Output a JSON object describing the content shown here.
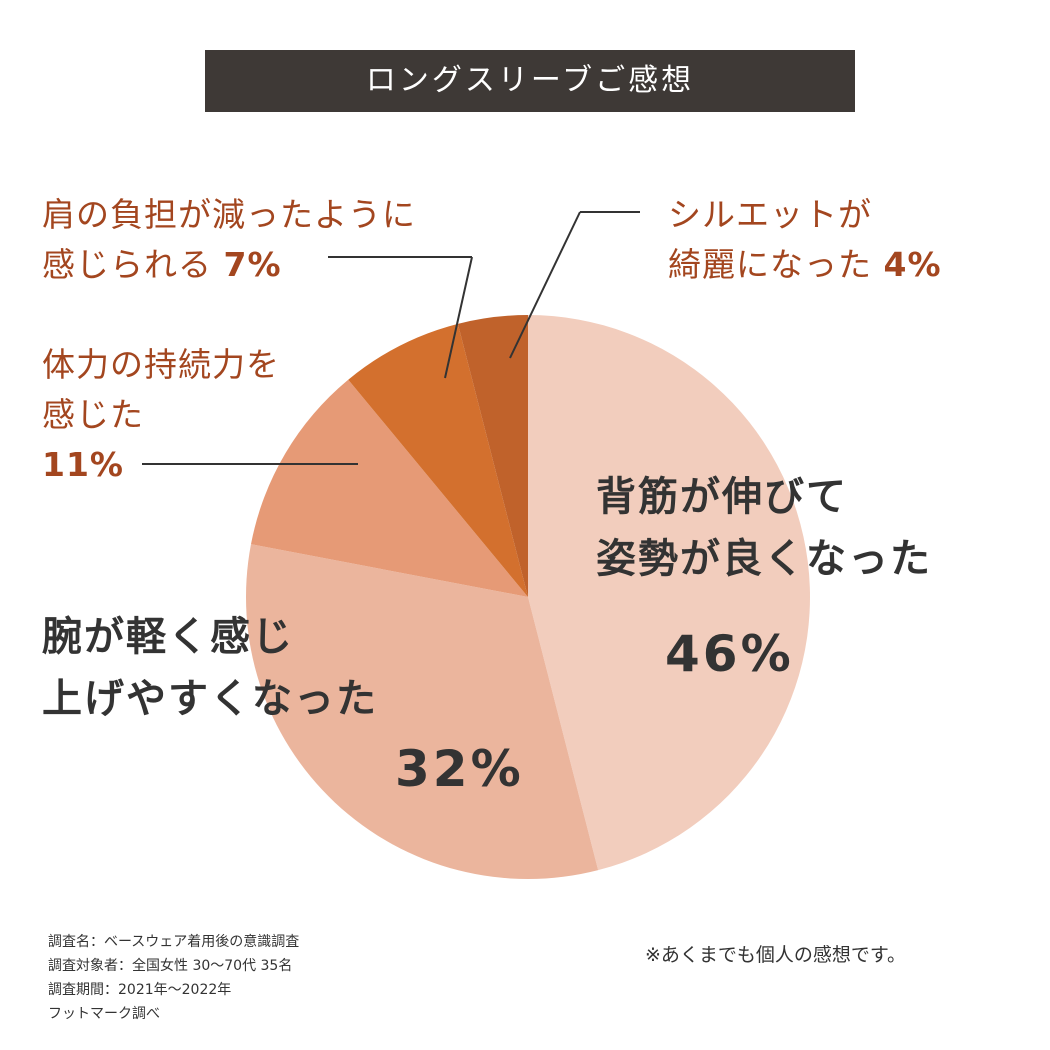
{
  "chart_data": {
    "type": "pie",
    "title": "ロングスリーブご感想",
    "slices": [
      {
        "label_lines": [
          "背筋が伸びて",
          "姿勢が良くなった"
        ],
        "value": 46,
        "value_label": "46%",
        "color": "#f2cdbd"
      },
      {
        "label_lines": [
          "腕が軽く感じ",
          "上げやすくなった"
        ],
        "value": 32,
        "value_label": "32%",
        "color": "#ebb59d"
      },
      {
        "label_lines": [
          "体力の持続力を",
          "感じた"
        ],
        "value": 11,
        "value_label": "11%",
        "color": "#e69a76"
      },
      {
        "label_lines": [
          "肩の負担が減ったように",
          "感じられる"
        ],
        "value": 7,
        "value_label": "7%",
        "color": "#d3702e"
      },
      {
        "label_lines": [
          "シルエットが",
          "綺麗になった"
        ],
        "value": 4,
        "value_label": "4%",
        "color": "#c0622b"
      }
    ],
    "start": "top",
    "direction": "clockwise"
  },
  "footnote": [
    "調査名：ベースウェア着用後の意識調査",
    "調査対象者：全国女性 30〜70代 35名",
    "調査期間：2021年〜2022年",
    "フットマーク調べ"
  ],
  "disclaimer": "※あくまでも個人の感想です。"
}
